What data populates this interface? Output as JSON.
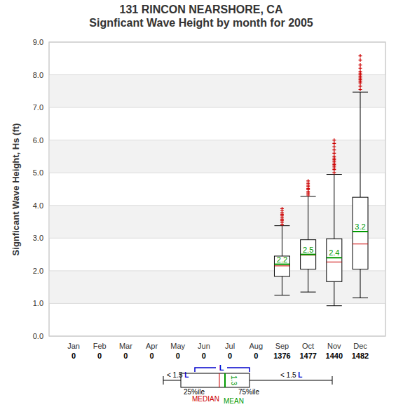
{
  "chart_data": {
    "type": "box",
    "title": "131   RINCON NEARSHORE, CA",
    "subtitle": "Signficant Wave Height by month for 2005",
    "y_label": "Signficant Wave Height, Hs (ft)",
    "categories": [
      "Jan",
      "Feb",
      "Mar",
      "Apr",
      "May",
      "Jun",
      "Jul",
      "Aug",
      "Sep",
      "Oct",
      "Nov",
      "Dec"
    ],
    "counts": [
      0,
      0,
      0,
      0,
      0,
      0,
      0,
      0,
      1376,
      1477,
      1440,
      1482
    ],
    "whisker_low": [
      null,
      null,
      null,
      null,
      null,
      null,
      null,
      null,
      1.25,
      1.35,
      0.93,
      1.17
    ],
    "q1": [
      null,
      null,
      null,
      null,
      null,
      null,
      null,
      null,
      1.83,
      2.05,
      1.67,
      2.05
    ],
    "median": [
      null,
      null,
      null,
      null,
      null,
      null,
      null,
      null,
      2.15,
      2.48,
      2.27,
      2.82
    ],
    "q3": [
      null,
      null,
      null,
      null,
      null,
      null,
      null,
      null,
      2.45,
      2.95,
      2.98,
      4.25
    ],
    "whisker_high": [
      null,
      null,
      null,
      null,
      null,
      null,
      null,
      null,
      3.38,
      4.28,
      4.95,
      7.47
    ],
    "mean": [
      null,
      null,
      null,
      null,
      null,
      null,
      null,
      null,
      2.2,
      2.5,
      2.4,
      3.2
    ],
    "outliers": [
      null,
      null,
      null,
      null,
      null,
      null,
      null,
      null,
      [
        3.42,
        3.48,
        3.53,
        3.58,
        3.63,
        3.68,
        3.73,
        3.78,
        3.85,
        3.9
      ],
      [
        4.32,
        4.38,
        4.42,
        4.48,
        4.52,
        4.58,
        4.62,
        4.68,
        4.75
      ],
      [
        5.0,
        5.1,
        5.15,
        5.2,
        5.25,
        5.3,
        5.35,
        5.4,
        5.45,
        5.5,
        5.6,
        5.7,
        5.8,
        5.9,
        6.0
      ],
      [
        7.55,
        7.65,
        7.75,
        7.8,
        7.85,
        7.9,
        7.95,
        8.0,
        8.05,
        8.1,
        8.2,
        8.3,
        8.45,
        8.58
      ]
    ],
    "ylim": [
      0,
      9
    ],
    "yticks": [
      {
        "value": 0,
        "label": "0.0"
      },
      {
        "value": 1,
        "label": "1.0"
      },
      {
        "value": 2,
        "label": "2.0"
      },
      {
        "value": 3,
        "label": "3.0"
      },
      {
        "value": 4,
        "label": "4.0"
      },
      {
        "value": 5,
        "label": "5.0"
      },
      {
        "value": 6,
        "label": "6.0"
      },
      {
        "value": 7,
        "label": "7.0"
      },
      {
        "value": 8,
        "label": "8.0"
      },
      {
        "value": 9,
        "label": "9.0"
      }
    ],
    "grid": true,
    "data_labels": true,
    "color": "#000000",
    "annotations": {
      "whisker": "< 1.5",
      "box": "L",
      "q1": "25%ile",
      "q3": "75%ile",
      "median": "MEDIAN",
      "mean": "MEAN",
      "mean_value": "1.3"
    }
  }
}
